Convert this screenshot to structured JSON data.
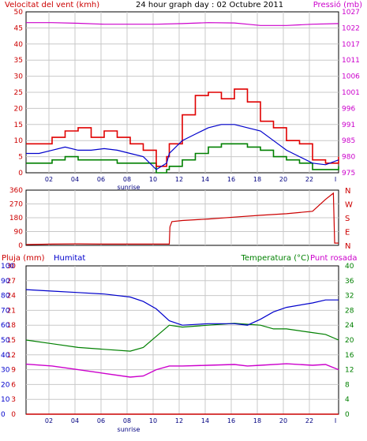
{
  "chart_data": [
    {
      "type": "line",
      "title": "24 hour graph day : 02 Octubre 2011",
      "left_axis_label": "Velocitat del vent (kmh)",
      "right_axis_label": "Pressió (mb)",
      "colors": {
        "wind_gust": "#e00000",
        "wind_avg": "#0000cc",
        "wind_dir_low": "#008000",
        "pressure": "#cc00cc"
      },
      "x_ticks": [
        "02",
        "04",
        "06",
        "08",
        "10",
        "12",
        "14",
        "16",
        "18",
        "20",
        "22",
        "I"
      ],
      "sunrise_label": "sunrise",
      "y_left_ticks": [
        "0",
        "5",
        "10",
        "15",
        "20",
        "25",
        "30",
        "35",
        "40",
        "45",
        "50"
      ],
      "y_left_range": [
        0,
        50
      ],
      "y_right_ticks": [
        "975",
        "980",
        "985",
        "991",
        "996",
        "1001",
        "1006",
        "1011",
        "1017",
        "1022",
        "1027"
      ],
      "y_right_range": [
        975,
        1027
      ],
      "x_range_hours": [
        0,
        24
      ],
      "series": [
        {
          "key": "gust",
          "values": [
            [
              0,
              9
            ],
            [
              1,
              9
            ],
            [
              2,
              11
            ],
            [
              3,
              13
            ],
            [
              4,
              14
            ],
            [
              5,
              11
            ],
            [
              6,
              13
            ],
            [
              7,
              11
            ],
            [
              8,
              9
            ],
            [
              9,
              7
            ],
            [
              10,
              2
            ],
            [
              10.8,
              5
            ],
            [
              11,
              9
            ],
            [
              12,
              18
            ],
            [
              13,
              24
            ],
            [
              14,
              25
            ],
            [
              15,
              23
            ],
            [
              16,
              26
            ],
            [
              17,
              22
            ],
            [
              18,
              16
            ],
            [
              19,
              14
            ],
            [
              20,
              10
            ],
            [
              21,
              9
            ],
            [
              22,
              4
            ],
            [
              23,
              3
            ],
            [
              24,
              5
            ]
          ]
        },
        {
          "key": "avg",
          "values": [
            [
              0,
              6
            ],
            [
              1,
              6
            ],
            [
              2,
              7
            ],
            [
              3,
              8
            ],
            [
              4,
              7
            ],
            [
              5,
              7
            ],
            [
              6,
              7.5
            ],
            [
              7,
              7
            ],
            [
              8,
              6
            ],
            [
              9,
              5
            ],
            [
              10,
              1
            ],
            [
              10.8,
              3
            ],
            [
              11,
              6
            ],
            [
              12,
              10
            ],
            [
              13,
              12
            ],
            [
              14,
              14
            ],
            [
              15,
              15
            ],
            [
              16,
              15
            ],
            [
              17,
              14
            ],
            [
              18,
              13
            ],
            [
              19,
              10
            ],
            [
              20,
              7
            ],
            [
              21,
              5
            ],
            [
              22,
              3
            ],
            [
              23,
              2.5
            ],
            [
              24,
              4
            ]
          ]
        },
        {
          "key": "low",
          "values": [
            [
              0,
              3
            ],
            [
              1,
              3
            ],
            [
              2,
              4
            ],
            [
              3,
              5
            ],
            [
              4,
              4
            ],
            [
              5,
              4
            ],
            [
              6,
              4
            ],
            [
              7,
              3
            ],
            [
              8,
              3
            ],
            [
              9,
              3
            ],
            [
              10,
              0
            ],
            [
              10.8,
              1
            ],
            [
              11,
              2
            ],
            [
              12,
              4
            ],
            [
              13,
              6
            ],
            [
              14,
              8
            ],
            [
              15,
              9
            ],
            [
              16,
              9
            ],
            [
              17,
              8
            ],
            [
              18,
              7
            ],
            [
              19,
              5
            ],
            [
              20,
              4
            ],
            [
              21,
              3
            ],
            [
              22,
              1
            ],
            [
              23,
              1
            ],
            [
              24,
              2
            ]
          ]
        },
        {
          "key": "pressure",
          "values": [
            [
              0,
              1023.5
            ],
            [
              2,
              1023.5
            ],
            [
              4,
              1023.3
            ],
            [
              6,
              1023
            ],
            [
              8,
              1023
            ],
            [
              10,
              1023
            ],
            [
              12,
              1023.2
            ],
            [
              14,
              1023.5
            ],
            [
              16,
              1023.4
            ],
            [
              17,
              1023
            ],
            [
              18,
              1022.6
            ],
            [
              19,
              1022.6
            ],
            [
              20,
              1022.6
            ],
            [
              21,
              1022.8
            ],
            [
              22,
              1023
            ],
            [
              24,
              1023.2
            ]
          ]
        }
      ]
    },
    {
      "type": "line",
      "y_ticks": [
        "360",
        "270",
        "180",
        "90",
        "0"
      ],
      "y_range": [
        0,
        360
      ],
      "right_labels": [
        "N",
        "W",
        "S",
        "E",
        "N"
      ],
      "series": [
        {
          "key": "direction",
          "values": [
            [
              0,
              5
            ],
            [
              2,
              8
            ],
            [
              4,
              10
            ],
            [
              6,
              8
            ],
            [
              8,
              8
            ],
            [
              10,
              8
            ],
            [
              11,
              8
            ],
            [
              11.05,
              120
            ],
            [
              11.2,
              155
            ],
            [
              12,
              162
            ],
            [
              14,
              172
            ],
            [
              16,
              184
            ],
            [
              18,
              196
            ],
            [
              20,
              206
            ],
            [
              22,
              222
            ],
            [
              23,
              300
            ],
            [
              23.6,
              340
            ],
            [
              23.7,
              15
            ],
            [
              24,
              15
            ]
          ]
        }
      ]
    },
    {
      "type": "line",
      "labels": {
        "rain": "Pluja (mm)",
        "humidity": "Humitat",
        "temperature": "Temperatura (°C)",
        "dewpoint": "Punt rosada"
      },
      "y_left_ticks": [
        "0",
        "3",
        "6",
        "9",
        "12",
        "15",
        "18",
        "21",
        "24",
        "27",
        "30"
      ],
      "y_left_ticks_b": [
        "0",
        "10",
        "20",
        "30",
        "40",
        "50",
        "60",
        "70",
        "80",
        "90",
        "100"
      ],
      "y_right_ticks": [
        "0",
        "4",
        "8",
        "12",
        "16",
        "20",
        "24",
        "28",
        "32",
        "36",
        "40"
      ],
      "y_range_percent": [
        0,
        100
      ],
      "y_range_temp": [
        0,
        40
      ],
      "series": [
        {
          "key": "humidity",
          "values": [
            [
              0,
              84
            ],
            [
              2,
              83
            ],
            [
              4,
              82
            ],
            [
              6,
              81
            ],
            [
              8,
              79
            ],
            [
              9,
              76
            ],
            [
              10,
              71
            ],
            [
              11,
              63
            ],
            [
              12,
              60
            ],
            [
              14,
              61
            ],
            [
              16,
              61
            ],
            [
              17,
              60
            ],
            [
              18,
              64
            ],
            [
              19,
              69
            ],
            [
              20,
              72
            ],
            [
              22,
              75
            ],
            [
              23,
              77
            ],
            [
              24,
              77
            ]
          ]
        },
        {
          "key": "temperature",
          "values": [
            [
              0,
              20
            ],
            [
              2,
              19
            ],
            [
              4,
              18
            ],
            [
              6,
              17.5
            ],
            [
              8,
              17
            ],
            [
              9,
              18
            ],
            [
              10,
              21
            ],
            [
              11,
              24
            ],
            [
              12,
              23.5
            ],
            [
              14,
              24
            ],
            [
              16,
              24.5
            ],
            [
              18,
              24
            ],
            [
              19,
              23
            ],
            [
              20,
              23
            ],
            [
              22,
              22
            ],
            [
              23,
              21.5
            ],
            [
              24,
              20
            ]
          ]
        },
        {
          "key": "dewpoint",
          "values": [
            [
              0,
              13.5
            ],
            [
              2,
              13
            ],
            [
              4,
              12
            ],
            [
              6,
              11
            ],
            [
              8,
              10
            ],
            [
              9,
              10.3
            ],
            [
              10,
              12
            ],
            [
              11,
              13
            ],
            [
              12,
              13
            ],
            [
              14,
              13.2
            ],
            [
              16,
              13.4
            ],
            [
              17,
              13
            ],
            [
              18,
              13.2
            ],
            [
              20,
              13.6
            ],
            [
              22,
              13.2
            ],
            [
              23,
              13.4
            ],
            [
              24,
              12
            ]
          ]
        },
        {
          "key": "rain",
          "values": [
            [
              0,
              0
            ],
            [
              24,
              0
            ]
          ]
        }
      ]
    }
  ]
}
